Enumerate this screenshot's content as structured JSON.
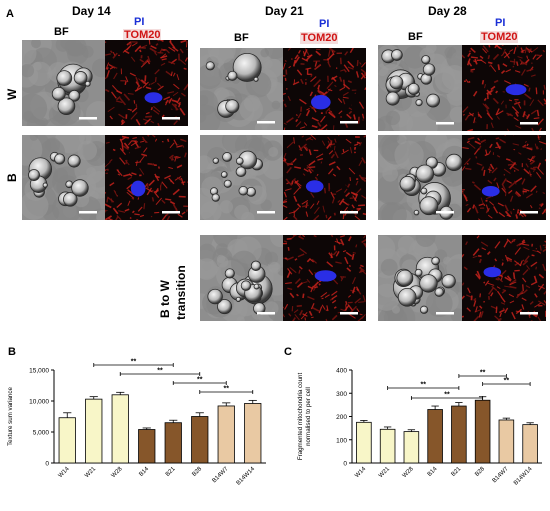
{
  "panel_a": {
    "letter": "A",
    "days": [
      "Day 14",
      "Day 21",
      "Day 28"
    ],
    "channel_bf": "BF",
    "channel_pi": "PI",
    "channel_tom": "TOM20",
    "rows": [
      "W",
      "B",
      "B to W",
      "transition"
    ]
  },
  "panel_b": {
    "letter": "B"
  },
  "panel_c": {
    "letter": "C"
  },
  "chart_data": [
    {
      "type": "bar",
      "categories": [
        "W14",
        "W21",
        "W28",
        "B14",
        "B21",
        "B28",
        "B14W7",
        "B14W14"
      ],
      "values": [
        7300,
        10300,
        11000,
        5400,
        6500,
        7500,
        9200,
        9600
      ],
      "errors": [
        800,
        400,
        400,
        250,
        400,
        600,
        500,
        500
      ],
      "colors": [
        "#f8f6c8",
        "#f8f6c8",
        "#f8f6c8",
        "#86562a",
        "#86562a",
        "#86562a",
        "#e9c9a3",
        "#e9c9a3"
      ],
      "ylabel": "Texture sum variance",
      "ylim": [
        0,
        15000
      ],
      "yticks": [
        "0",
        "5,000",
        "10,000",
        "15,000"
      ],
      "significance": [
        {
          "from": "W21",
          "to": "B21",
          "label": "**"
        },
        {
          "from": "W28",
          "to": "B28",
          "label": "**"
        },
        {
          "from": "B21",
          "to": "B14W7",
          "label": "**"
        },
        {
          "from": "B28",
          "to": "B14W14",
          "label": "**"
        }
      ]
    },
    {
      "type": "bar",
      "categories": [
        "W14",
        "W21",
        "W28",
        "B14",
        "B21",
        "B28",
        "B14W7",
        "B14W14"
      ],
      "values": [
        175,
        145,
        135,
        230,
        245,
        270,
        185,
        165
      ],
      "errors": [
        8,
        10,
        8,
        15,
        15,
        15,
        8,
        8
      ],
      "colors": [
        "#f8f6c8",
        "#f8f6c8",
        "#f8f6c8",
        "#86562a",
        "#86562a",
        "#86562a",
        "#e9c9a3",
        "#e9c9a3"
      ],
      "ylabel": "Fragmented mitochondria count normalised to per cell",
      "ylim": [
        0,
        400
      ],
      "yticks": [
        "0",
        "100",
        "200",
        "300",
        "400"
      ],
      "significance": [
        {
          "from": "W21",
          "to": "B21",
          "label": "**"
        },
        {
          "from": "W28",
          "to": "B28",
          "label": "**"
        },
        {
          "from": "B21",
          "to": "B14W7",
          "label": "**"
        },
        {
          "from": "B28",
          "to": "B14W14",
          "label": "**"
        }
      ]
    }
  ]
}
